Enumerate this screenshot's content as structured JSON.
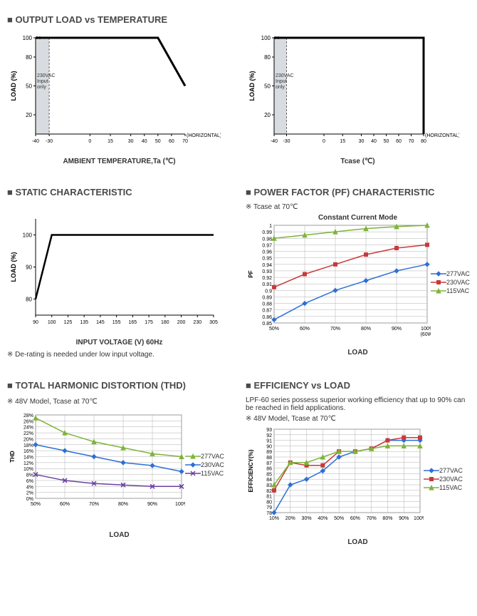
{
  "sections": {
    "s1": "OUTPUT LOAD vs TEMPERATURE",
    "s2": "STATIC CHARACTERISTIC",
    "s3": "POWER FACTOR (PF) CHARACTERISTIC",
    "s4": "TOTAL HARMONIC DISTORTION (THD)",
    "s5": "EFFICIENCY vs LOAD"
  },
  "chart1a": {
    "type": "line",
    "ylabel": "LOAD (%)",
    "xlabel": "AMBIENT TEMPERATURE,Ta (℃)",
    "horizontal_label": "(HORIZONTAL)",
    "xticks": [
      -40,
      -30,
      0,
      15,
      30,
      40,
      50,
      60,
      70
    ],
    "yticks": [
      20,
      50,
      80,
      100
    ],
    "shaded_region": {
      "x_from": -40,
      "x_to": -30,
      "label": "230VAC Input only"
    },
    "line_points": [
      [
        -40,
        100
      ],
      [
        50,
        100
      ],
      [
        70,
        50
      ]
    ],
    "line_color": "#000000",
    "line_width": 3,
    "background": "#ffffff"
  },
  "chart1b": {
    "type": "line",
    "ylabel": "LOAD (%)",
    "xlabel": "Tcase (℃)",
    "horizontal_label": "(HORIZONTAL)",
    "xticks": [
      -40,
      -30,
      0,
      15,
      30,
      40,
      50,
      60,
      70,
      80
    ],
    "yticks": [
      20,
      50,
      80,
      100
    ],
    "shaded_region": {
      "x_from": -40,
      "x_to": -30,
      "label": "230VAC Input only"
    },
    "line_points": [
      [
        -40,
        100
      ],
      [
        80,
        100
      ],
      [
        80,
        0
      ]
    ],
    "line_color": "#000000",
    "line_width": 3,
    "background": "#ffffff"
  },
  "chart2": {
    "type": "line",
    "ylabel": "LOAD (%)",
    "xlabel": "INPUT VOLTAGE (V) 60Hz",
    "note": "※ De-rating is needed under low input voltage.",
    "xticks": [
      90,
      100,
      125,
      135,
      145,
      155,
      165,
      175,
      180,
      200,
      230,
      305
    ],
    "yticks": [
      80,
      90,
      100
    ],
    "line_points": [
      [
        90,
        80
      ],
      [
        100,
        100
      ],
      [
        305,
        100
      ]
    ],
    "line_color": "#000000",
    "line_width": 2.5,
    "background": "#ffffff"
  },
  "chart3": {
    "type": "line-multi",
    "title": "Constant Current Mode",
    "subnote": "※ Tcase at 70℃",
    "ylabel": "PF",
    "xlabel": "LOAD",
    "xtick_labels": [
      "50%",
      "60%",
      "70%",
      "80%",
      "90%",
      "100%\n(60W)"
    ],
    "xticks": [
      50,
      60,
      70,
      80,
      90,
      100
    ],
    "yticks": [
      0.85,
      0.86,
      0.87,
      0.88,
      0.89,
      0.9,
      0.91,
      0.92,
      0.93,
      0.94,
      0.95,
      0.96,
      0.97,
      0.98,
      0.99,
      1
    ],
    "grid_color": "#b0b0b0",
    "series": [
      {
        "name": "277VAC",
        "color": "#2e6fd6",
        "marker": "diamond",
        "values": [
          [
            50,
            0.855
          ],
          [
            60,
            0.88
          ],
          [
            70,
            0.9
          ],
          [
            80,
            0.915
          ],
          [
            90,
            0.93
          ],
          [
            100,
            0.94
          ]
        ]
      },
      {
        "name": "230VAC",
        "color": "#c73a3a",
        "marker": "square",
        "values": [
          [
            50,
            0.905
          ],
          [
            60,
            0.925
          ],
          [
            70,
            0.94
          ],
          [
            80,
            0.955
          ],
          [
            90,
            0.965
          ],
          [
            100,
            0.97
          ]
        ]
      },
      {
        "name": "115VAC",
        "color": "#7eb33a",
        "marker": "triangle",
        "values": [
          [
            50,
            0.98
          ],
          [
            60,
            0.985
          ],
          [
            70,
            0.99
          ],
          [
            80,
            0.995
          ],
          [
            90,
            0.998
          ],
          [
            100,
            1.0
          ]
        ]
      }
    ]
  },
  "chart4": {
    "type": "line-multi",
    "subnote": "※ 48V Model, Tcase at 70℃",
    "ylabel": "THD",
    "xlabel": "LOAD",
    "xtick_labels": [
      "50%",
      "60%",
      "70%",
      "80%",
      "90%",
      "100%"
    ],
    "xticks": [
      50,
      60,
      70,
      80,
      90,
      100
    ],
    "yticks": [
      0,
      2,
      4,
      6,
      8,
      10,
      12,
      14,
      16,
      18,
      20,
      22,
      24,
      26,
      28
    ],
    "ytick_suffix": "%",
    "grid_color": "#b0b0b0",
    "series": [
      {
        "name": "277VAC",
        "color": "#7eb33a",
        "marker": "triangle",
        "values": [
          [
            50,
            27
          ],
          [
            60,
            22
          ],
          [
            70,
            19
          ],
          [
            80,
            17
          ],
          [
            90,
            15
          ],
          [
            100,
            14
          ]
        ]
      },
      {
        "name": "230VAC",
        "color": "#2e6fd6",
        "marker": "diamond",
        "values": [
          [
            50,
            18
          ],
          [
            60,
            16
          ],
          [
            70,
            14
          ],
          [
            80,
            12
          ],
          [
            90,
            11
          ],
          [
            100,
            9
          ]
        ]
      },
      {
        "name": "115VAC",
        "color": "#6b3fa0",
        "marker": "x",
        "values": [
          [
            50,
            8
          ],
          [
            60,
            6
          ],
          [
            70,
            5
          ],
          [
            80,
            4.5
          ],
          [
            90,
            4
          ],
          [
            100,
            4
          ]
        ]
      }
    ]
  },
  "chart5": {
    "type": "line-multi",
    "intro": "LPF-60 series possess superior working efficiency that up to 90% can be reached in field applications.",
    "subnote": "※ 48V Model, Tcase at 70℃",
    "ylabel": "EFFICIENCY(%)",
    "xlabel": "LOAD",
    "xtick_labels": [
      "10%",
      "20%",
      "30%",
      "40%",
      "50%",
      "60%",
      "70%",
      "80%",
      "90%",
      "100%"
    ],
    "xticks": [
      10,
      20,
      30,
      40,
      50,
      60,
      70,
      80,
      90,
      100
    ],
    "yticks": [
      78,
      79,
      80,
      81,
      82,
      83,
      84,
      85,
      86,
      87,
      88,
      89,
      90,
      91,
      92,
      93
    ],
    "grid_color": "#b0b0b0",
    "series": [
      {
        "name": "277VAC",
        "color": "#2e6fd6",
        "marker": "diamond",
        "values": [
          [
            10,
            78
          ],
          [
            20,
            83
          ],
          [
            30,
            84
          ],
          [
            40,
            85.5
          ],
          [
            50,
            88
          ],
          [
            60,
            89
          ],
          [
            70,
            89.5
          ],
          [
            80,
            91
          ],
          [
            90,
            91
          ],
          [
            100,
            91
          ]
        ]
      },
      {
        "name": "230VAC",
        "color": "#c73a3a",
        "marker": "square",
        "values": [
          [
            10,
            82
          ],
          [
            20,
            87
          ],
          [
            30,
            86.5
          ],
          [
            40,
            86.5
          ],
          [
            50,
            89
          ],
          [
            60,
            89
          ],
          [
            70,
            89.5
          ],
          [
            80,
            91
          ],
          [
            90,
            91.5
          ],
          [
            100,
            91.5
          ]
        ]
      },
      {
        "name": "115VAC",
        "color": "#7eb33a",
        "marker": "triangle",
        "values": [
          [
            10,
            83
          ],
          [
            20,
            87
          ],
          [
            30,
            87
          ],
          [
            40,
            88
          ],
          [
            50,
            89
          ],
          [
            60,
            89
          ],
          [
            70,
            89.5
          ],
          [
            80,
            90
          ],
          [
            90,
            90
          ],
          [
            100,
            90
          ]
        ]
      }
    ]
  }
}
